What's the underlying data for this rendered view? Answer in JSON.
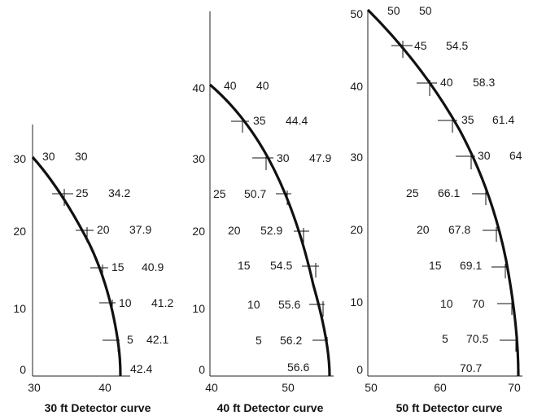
{
  "diagram": {
    "panels": [
      {
        "caption": "30 ft Detector curve",
        "y_ticks": [
          "0",
          "10",
          "20",
          "30"
        ],
        "x_ticks": [
          "30",
          "40"
        ],
        "points": [
          {
            "h": "30",
            "d": "30"
          },
          {
            "h": "25",
            "d": "34.2"
          },
          {
            "h": "20",
            "d": "37.9"
          },
          {
            "h": "15",
            "d": "40.9"
          },
          {
            "h": "10",
            "d": "41.2"
          },
          {
            "h": "5",
            "d": "42.1"
          },
          {
            "h": "",
            "d": "42.4"
          }
        ]
      },
      {
        "caption": "40 ft Detector curve",
        "y_ticks": [
          "0",
          "10",
          "20",
          "30",
          "40"
        ],
        "x_ticks": [
          "40",
          "50"
        ],
        "points": [
          {
            "h": "40",
            "d": "40"
          },
          {
            "h": "35",
            "d": "44.4"
          },
          {
            "h": "30",
            "d": "47.9"
          },
          {
            "h": "25",
            "d": "50.7"
          },
          {
            "h": "20",
            "d": "52.9"
          },
          {
            "h": "15",
            "d": "54.5"
          },
          {
            "h": "10",
            "d": "55.6"
          },
          {
            "h": "5",
            "d": "56.2"
          },
          {
            "h": "",
            "d": "56.6"
          }
        ]
      },
      {
        "caption": "50 ft Detector curve",
        "y_ticks": [
          "0",
          "10",
          "20",
          "30",
          "40",
          "50"
        ],
        "x_ticks": [
          "50",
          "60",
          "70"
        ],
        "points": [
          {
            "h": "50",
            "d": "50"
          },
          {
            "h": "45",
            "d": "54.5"
          },
          {
            "h": "40",
            "d": "58.3"
          },
          {
            "h": "35",
            "d": "61.4"
          },
          {
            "h": "30",
            "d": "64"
          },
          {
            "h": "25",
            "d": "66.1"
          },
          {
            "h": "20",
            "d": "67.8"
          },
          {
            "h": "15",
            "d": "69.1"
          },
          {
            "h": "10",
            "d": "70"
          },
          {
            "h": "5",
            "d": "70.5"
          },
          {
            "h": "",
            "d": "70.7"
          }
        ]
      }
    ]
  }
}
